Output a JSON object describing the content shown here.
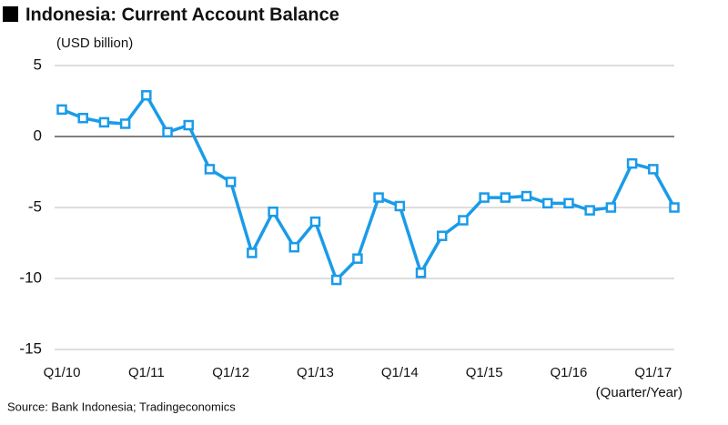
{
  "chart_data": {
    "type": "line",
    "title": "Indonesia: Current Account Balance",
    "y_label": "(USD billion)",
    "x_label": "(Quarter/Year)",
    "source": "Source:  Bank Indonesia; Tradingeconomics",
    "categories": [
      "Q1/10",
      null,
      null,
      null,
      "Q1/11",
      null,
      null,
      null,
      "Q1/12",
      null,
      null,
      null,
      "Q1/13",
      null,
      null,
      null,
      "Q1/14",
      null,
      null,
      null,
      "Q1/15",
      null,
      null,
      null,
      "Q1/16",
      null,
      null,
      null,
      "Q1/17",
      null
    ],
    "series": [
      {
        "name": "Current Account Balance",
        "color": "#1a9be8",
        "values": [
          1.9,
          1.3,
          1.0,
          0.9,
          2.9,
          0.3,
          0.8,
          -2.3,
          -3.2,
          -8.2,
          -5.3,
          -7.8,
          -6.0,
          -10.1,
          -8.6,
          -4.3,
          -4.9,
          -9.6,
          -7.0,
          -5.9,
          -4.3,
          -4.3,
          -4.2,
          -4.7,
          -4.7,
          -5.2,
          -5.0,
          -1.9,
          -2.3,
          -5.0
        ]
      }
    ],
    "ylim": [
      -15,
      5
    ],
    "yticks": [
      -15,
      -10,
      -5,
      0,
      5
    ],
    "grid": true
  }
}
